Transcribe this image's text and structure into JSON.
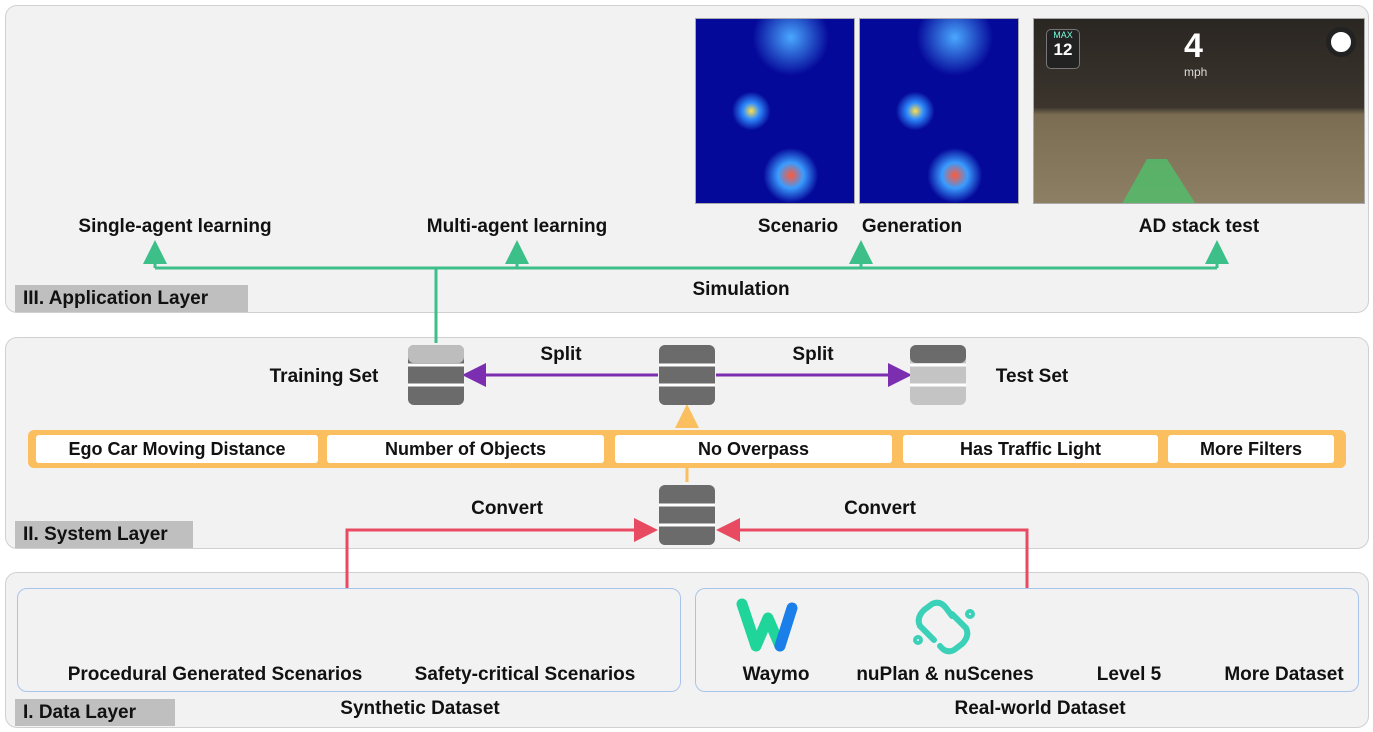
{
  "layers": {
    "application": "III. Application Layer",
    "system": "II. System Layer",
    "data": "I. Data Layer"
  },
  "application": {
    "items": [
      "Single-agent learning",
      "Multi-agent learning",
      "Scenario",
      "Generation",
      "AD stack test"
    ],
    "simulation": "Simulation",
    "ad_view": {
      "max_label": "MAX",
      "max_value": "12",
      "speed": "4",
      "unit": "mph"
    }
  },
  "system": {
    "training_set": "Training Set",
    "test_set": "Test Set",
    "split_left": "Split",
    "split_right": "Split",
    "filters": [
      "Ego Car Moving Distance",
      "Number of Objects",
      "No Overpass",
      "Has Traffic Light",
      "More Filters"
    ],
    "convert_left": "Convert",
    "convert_right": "Convert"
  },
  "data": {
    "synthetic": {
      "items": [
        "Procedural Generated Scenarios",
        "Safety-critical Scenarios"
      ],
      "label": "Synthetic Dataset"
    },
    "real": {
      "items": [
        "Waymo",
        "nuPlan & nuScenes",
        "Level 5",
        "More Dataset"
      ],
      "label": "Real-world Dataset"
    }
  },
  "colors": {
    "green": "#3dbf8a",
    "purple": "#7b2fb0",
    "orange": "#fbbf5f",
    "red": "#e84a62",
    "layer_bg": "#f2f2f2"
  }
}
